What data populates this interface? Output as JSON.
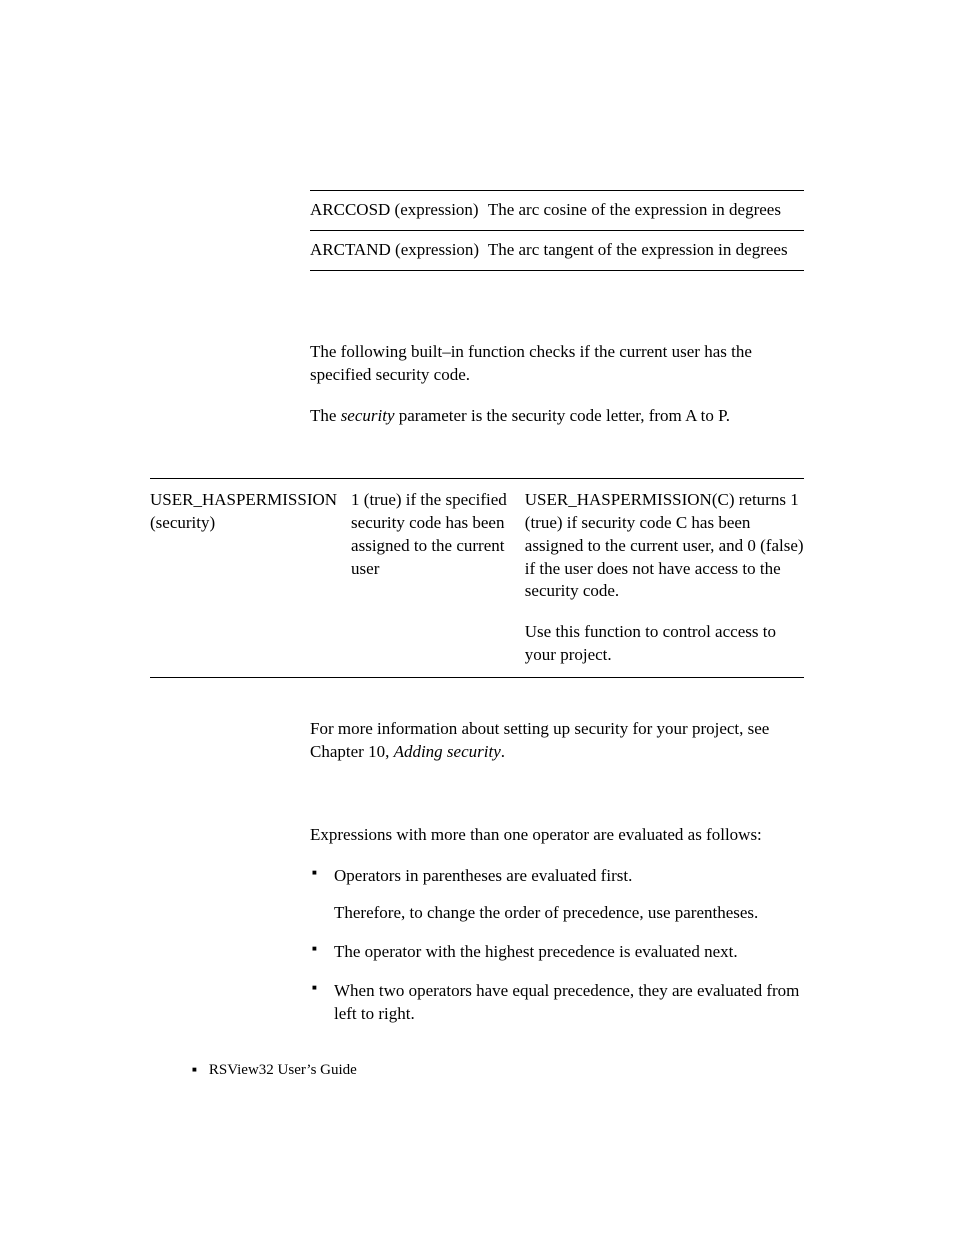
{
  "table1": {
    "rows": [
      {
        "func": "ARCCOSD (expression)",
        "desc": "The arc cosine of the expression in degrees"
      },
      {
        "func": "ARCTAND (expression)",
        "desc": "The arc tangent of the expression in degrees"
      }
    ]
  },
  "para1": "The following built–in function checks if the current user has the specified security code.",
  "para2_pre": "The ",
  "para2_italic": "security",
  "para2_post": " parameter is the security code letter, from A to P.",
  "table2": {
    "c1": "USER_HASPERMISSION (security)",
    "c2": "1 (true) if the specified security code has been assigned to the current user",
    "c3a": "USER_HASPERMISSION(C) returns 1 (true) if security code C has been assigned to the current user, and 0 (false) if the user does not have access to the security code.",
    "c3b": "Use this function to control access to your project."
  },
  "para3_pre": "For more information about setting up security for your project, see Chapter 10, ",
  "para3_italic": "Adding security",
  "para3_post": ".",
  "para4": "Expressions with more than one operator are evaluated as follows:",
  "bullets": [
    {
      "main": "Operators in parentheses are evaluated first.",
      "sub": "Therefore, to change the order of precedence, use parentheses."
    },
    {
      "main": "The operator with the highest precedence is evaluated next."
    },
    {
      "main": "When two operators have equal precedence, they are evaluated from left to right."
    }
  ],
  "footer": "RSView32  User’s Guide"
}
